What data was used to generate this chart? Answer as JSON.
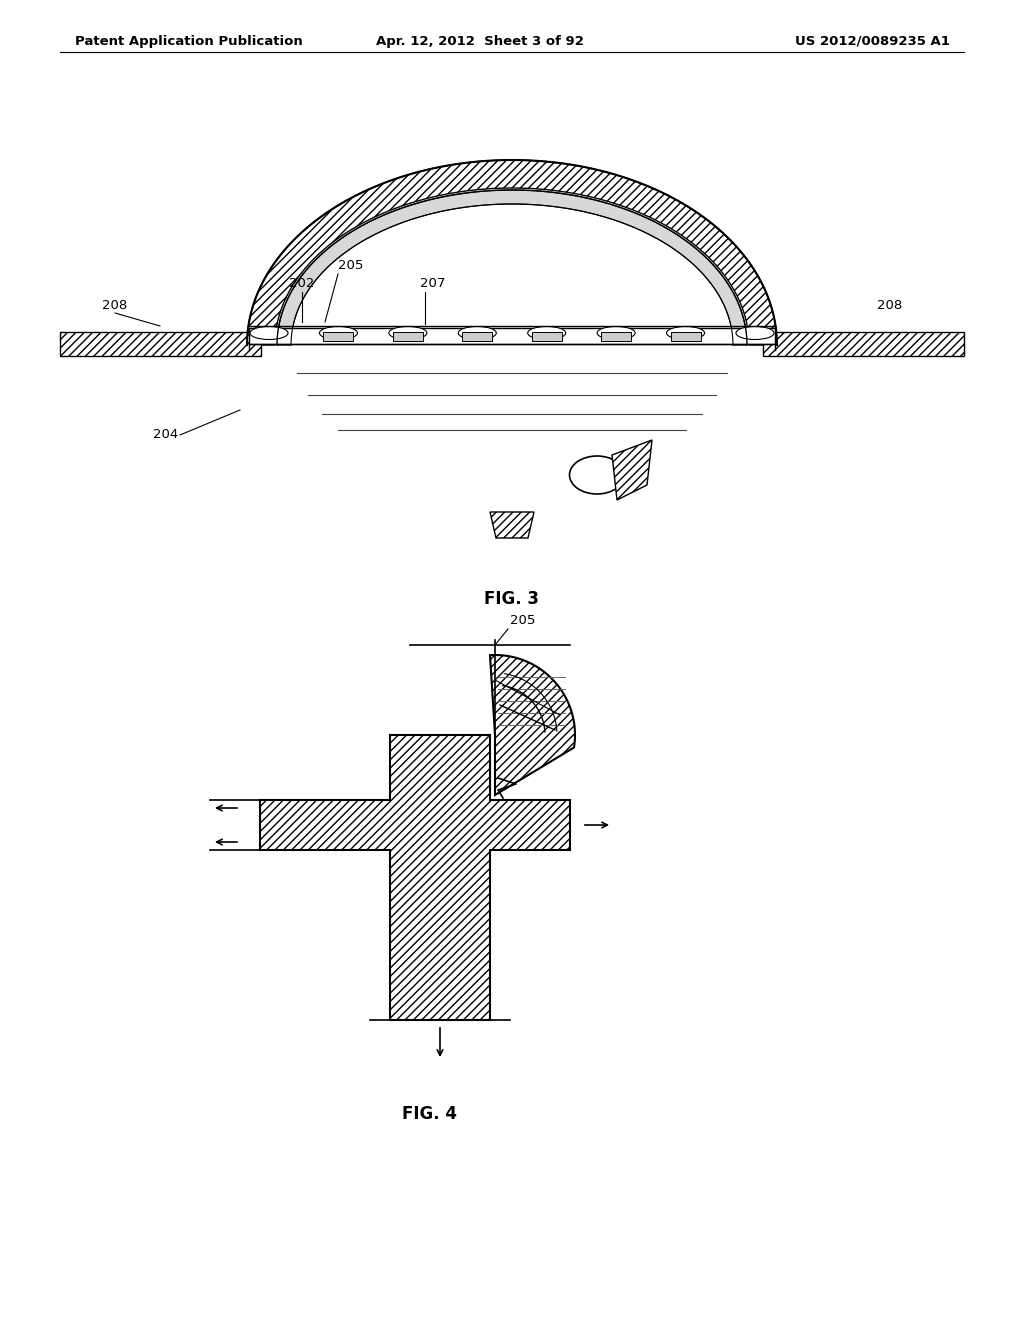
{
  "header_left": "Patent Application Publication",
  "header_center": "Apr. 12, 2012  Sheet 3 of 92",
  "header_right": "US 2012/0089235 A1",
  "fig3_caption": "FIG. 3",
  "fig4_caption": "FIG. 4",
  "background_color": "#ffffff",
  "line_color": "#000000"
}
